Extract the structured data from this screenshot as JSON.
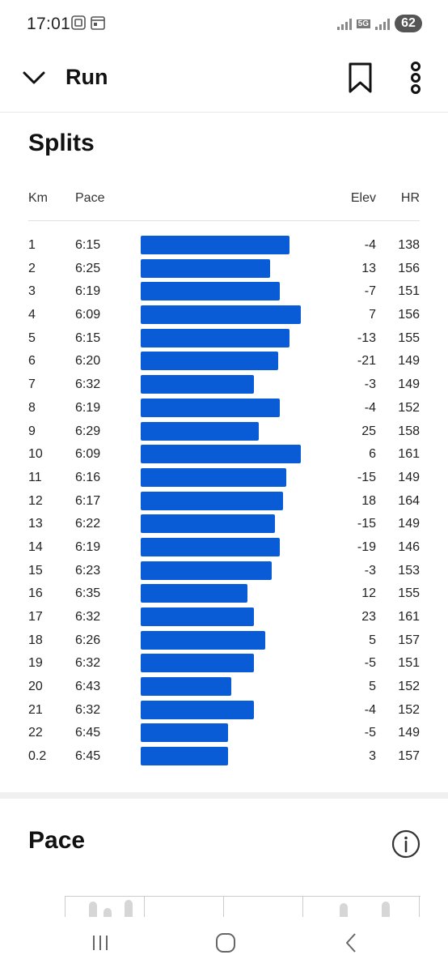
{
  "status_bar": {
    "time": "17:01",
    "network": "5G",
    "battery": "62"
  },
  "app_bar": {
    "title": "Run"
  },
  "splits": {
    "title": "Splits",
    "headers": {
      "km": "Km",
      "pace": "Pace",
      "elev": "Elev",
      "hr": "HR"
    },
    "rows": [
      {
        "km": "1",
        "pace": "6:15",
        "elev": "-4",
        "hr": "138",
        "bar_fraction": 0.92
      },
      {
        "km": "2",
        "pace": "6:25",
        "elev": "13",
        "hr": "156",
        "bar_fraction": 0.8
      },
      {
        "km": "3",
        "pace": "6:19",
        "elev": "-7",
        "hr": "151",
        "bar_fraction": 0.86
      },
      {
        "km": "4",
        "pace": "6:09",
        "elev": "7",
        "hr": "156",
        "bar_fraction": 0.99
      },
      {
        "km": "5",
        "pace": "6:15",
        "elev": "-13",
        "hr": "155",
        "bar_fraction": 0.92
      },
      {
        "km": "6",
        "pace": "6:20",
        "elev": "-21",
        "hr": "149",
        "bar_fraction": 0.85
      },
      {
        "km": "7",
        "pace": "6:32",
        "elev": "-3",
        "hr": "149",
        "bar_fraction": 0.7
      },
      {
        "km": "8",
        "pace": "6:19",
        "elev": "-4",
        "hr": "152",
        "bar_fraction": 0.86
      },
      {
        "km": "9",
        "pace": "6:29",
        "elev": "25",
        "hr": "158",
        "bar_fraction": 0.73
      },
      {
        "km": "10",
        "pace": "6:09",
        "elev": "6",
        "hr": "161",
        "bar_fraction": 0.99
      },
      {
        "km": "11",
        "pace": "6:16",
        "elev": "-15",
        "hr": "149",
        "bar_fraction": 0.9
      },
      {
        "km": "12",
        "pace": "6:17",
        "elev": "18",
        "hr": "164",
        "bar_fraction": 0.88
      },
      {
        "km": "13",
        "pace": "6:22",
        "elev": "-15",
        "hr": "149",
        "bar_fraction": 0.83
      },
      {
        "km": "14",
        "pace": "6:19",
        "elev": "-19",
        "hr": "146",
        "bar_fraction": 0.86
      },
      {
        "km": "15",
        "pace": "6:23",
        "elev": "-3",
        "hr": "153",
        "bar_fraction": 0.81
      },
      {
        "km": "16",
        "pace": "6:35",
        "elev": "12",
        "hr": "155",
        "bar_fraction": 0.66
      },
      {
        "km": "17",
        "pace": "6:32",
        "elev": "23",
        "hr": "161",
        "bar_fraction": 0.7
      },
      {
        "km": "18",
        "pace": "6:26",
        "elev": "5",
        "hr": "157",
        "bar_fraction": 0.77
      },
      {
        "km": "19",
        "pace": "6:32",
        "elev": "-5",
        "hr": "151",
        "bar_fraction": 0.7
      },
      {
        "km": "20",
        "pace": "6:43",
        "elev": "5",
        "hr": "152",
        "bar_fraction": 0.56
      },
      {
        "km": "21",
        "pace": "6:32",
        "elev": "-4",
        "hr": "152",
        "bar_fraction": 0.7
      },
      {
        "km": "22",
        "pace": "6:45",
        "elev": "-5",
        "hr": "149",
        "bar_fraction": 0.54
      },
      {
        "km": "0.2",
        "pace": "6:45",
        "elev": "3",
        "hr": "157",
        "bar_fraction": 0.54
      }
    ]
  },
  "pace_section": {
    "title": "Pace"
  },
  "colors": {
    "bar": "#0a5bd6",
    "text": "#111111",
    "divider": "#e0e0e0"
  },
  "icons": {
    "back": "chevron-down-icon",
    "bookmark": "bookmark-icon",
    "more": "more-vertical-icon",
    "info": "info-icon",
    "nav_recent": "recent-apps-icon",
    "nav_home": "home-icon",
    "nav_back": "back-icon"
  }
}
